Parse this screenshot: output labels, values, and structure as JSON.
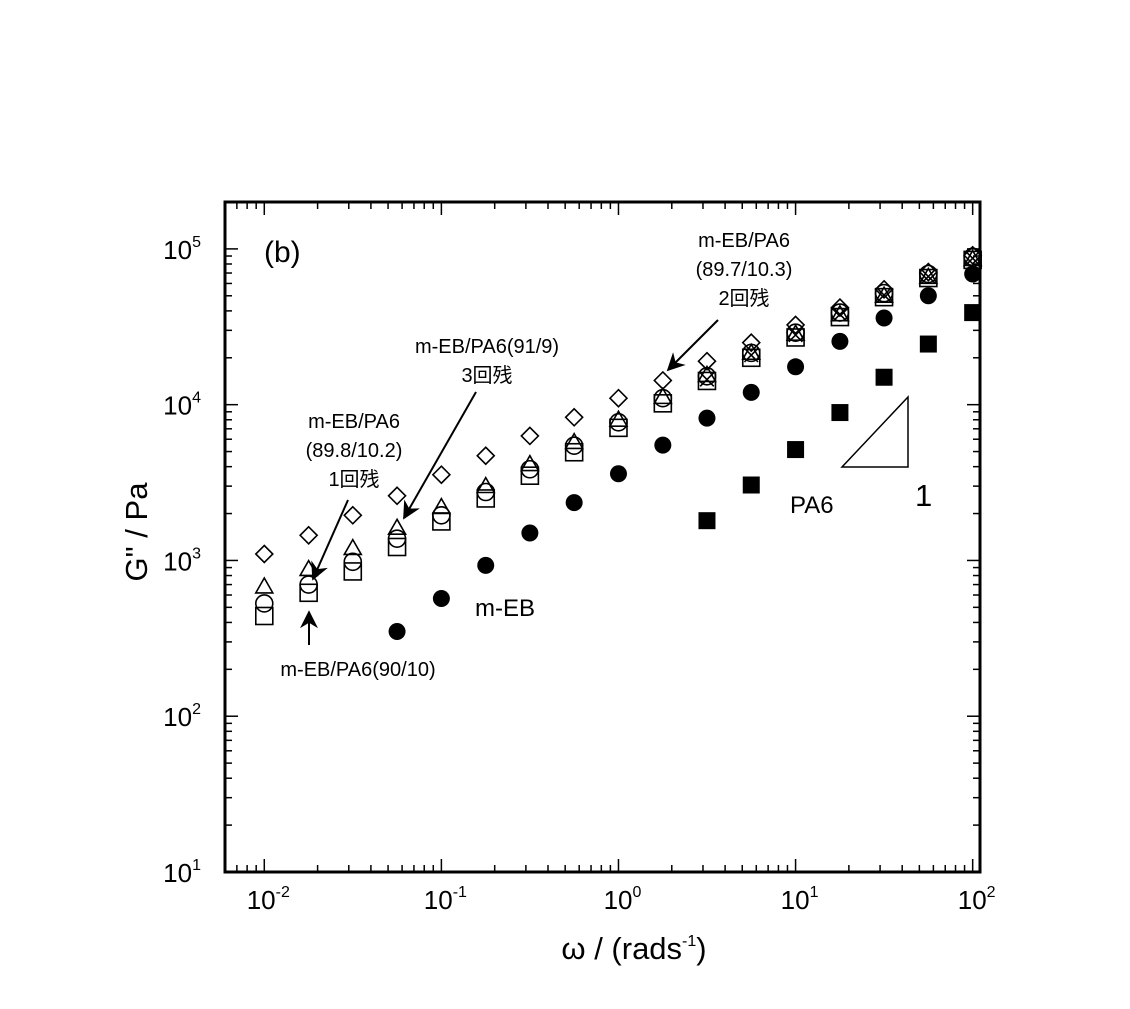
{
  "chart_data": {
    "type": "scatter",
    "panel_label": "(b)",
    "xlabel": {
      "base": "ω / (rads",
      "sup": "-1",
      "tail": ")"
    },
    "ylabel": "G\" / Pa",
    "xscale": "log",
    "yscale": "log",
    "xlim": [
      0.006,
      110
    ],
    "ylim": [
      10,
      200000
    ],
    "x_ticks": [
      {
        "value": 0.01,
        "base": "10",
        "exp": "-2"
      },
      {
        "value": 0.1,
        "base": "10",
        "exp": "-1"
      },
      {
        "value": 1,
        "base": "10",
        "exp": "0"
      },
      {
        "value": 10,
        "base": "10",
        "exp": "1"
      },
      {
        "value": 100,
        "base": "10",
        "exp": "2"
      }
    ],
    "y_ticks": [
      {
        "value": 10,
        "base": "10",
        "exp": "1"
      },
      {
        "value": 100,
        "base": "10",
        "exp": "2"
      },
      {
        "value": 1000,
        "base": "10",
        "exp": "3"
      },
      {
        "value": 10000,
        "base": "10",
        "exp": "4"
      },
      {
        "value": 100000,
        "base": "10",
        "exp": "5"
      }
    ],
    "series": [
      {
        "key": "mEB_PA6_90_10",
        "marker": "square-open",
        "x": [
          0.01,
          0.0178,
          0.0316,
          0.0562,
          0.1,
          0.178,
          0.316,
          0.562,
          1.0,
          1.78,
          3.16,
          5.62,
          10,
          17.8,
          31.6,
          56.2,
          100
        ],
        "y": [
          440,
          620,
          850,
          1220,
          1780,
          2500,
          3500,
          4950,
          7100,
          10200,
          14200,
          20000,
          27000,
          36500,
          49000,
          65000,
          85000
        ]
      },
      {
        "key": "mEB_PA6_89_8",
        "marker": "circle-open",
        "x": [
          0.01,
          0.0178,
          0.0316,
          0.0562,
          0.1,
          0.178,
          0.316,
          0.562,
          1.0,
          1.78,
          3.16,
          5.62,
          10,
          17.8,
          31.6,
          56.2,
          100
        ],
        "y": [
          530,
          700,
          980,
          1380,
          1950,
          2750,
          3850,
          5450,
          7700,
          11000,
          15200,
          21500,
          29000,
          39000,
          52000,
          69000,
          89000
        ]
      },
      {
        "key": "mEB_PA6_91_9",
        "marker": "triangle-open",
        "x": [
          0.01,
          0.0178,
          0.0316,
          0.0562,
          0.1,
          0.178,
          0.316,
          0.562,
          1.0,
          1.78,
          3.16,
          5.62,
          10,
          17.8,
          31.6,
          56.2,
          100
        ],
        "y": [
          680,
          880,
          1200,
          1620,
          2200,
          3000,
          4150,
          5750,
          8000,
          11200,
          15500,
          21500,
          28500,
          38000,
          50000,
          66000,
          86000
        ]
      },
      {
        "key": "mEB_PA6_89_7",
        "marker": "cross",
        "x": [
          3.16,
          5.62,
          10,
          17.8,
          31.6,
          56.2,
          100
        ],
        "y": [
          14500,
          20800,
          28000,
          38000,
          50500,
          66500,
          87000
        ]
      },
      {
        "key": "mEB_PA6_diamond",
        "marker": "diamond-open",
        "x": [
          0.01,
          0.0178,
          0.0316,
          0.0562,
          0.1,
          0.178,
          0.316,
          0.562,
          1.0,
          1.78,
          3.16,
          5.62,
          10,
          17.8,
          31.6,
          56.2,
          100
        ],
        "y": [
          1100,
          1450,
          1950,
          2600,
          3550,
          4700,
          6300,
          8300,
          11000,
          14300,
          19000,
          25000,
          32500,
          42000,
          55000,
          71000,
          91000
        ]
      },
      {
        "key": "mEB",
        "marker": "circle-filled",
        "x": [
          0.0562,
          0.1,
          0.178,
          0.316,
          0.562,
          1.0,
          1.78,
          3.16,
          5.62,
          10,
          17.8,
          31.6,
          56.2,
          100
        ],
        "y": [
          350,
          570,
          930,
          1500,
          2350,
          3600,
          5500,
          8200,
          12000,
          17500,
          25500,
          36000,
          50000,
          69000
        ]
      },
      {
        "key": "PA6",
        "marker": "square-filled",
        "x": [
          3.16,
          5.62,
          10,
          17.8,
          31.6,
          56.2,
          100
        ],
        "y": [
          1800,
          3050,
          5150,
          8900,
          15000,
          24500,
          39000
        ]
      }
    ],
    "annotations": {
      "a1": [
        "m-EB/PA6",
        "(89.7/10.3)",
        "2回残"
      ],
      "a2": [
        "m-EB/PA6(91/9)",
        "3回残"
      ],
      "a3": [
        "m-EB/PA6",
        "(89.8/10.2)",
        "1回残"
      ],
      "a4": [
        "m-EB/PA6(90/10)"
      ],
      "a5": [
        "m-EB"
      ],
      "a6": [
        "PA6"
      ],
      "slope_label": "1"
    }
  }
}
